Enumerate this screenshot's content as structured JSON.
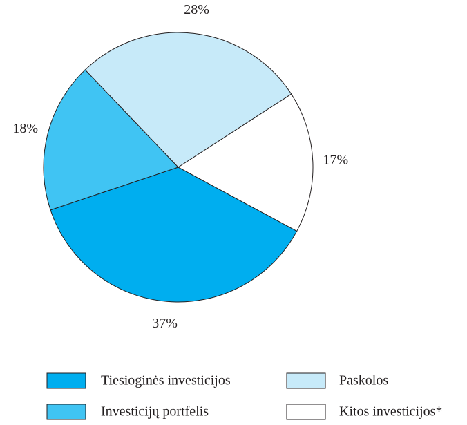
{
  "chart_data": {
    "type": "pie",
    "categories": [
      "Tiesioginės investicijos",
      "Investicijų portfelis",
      "Paskolos",
      "Kitos investicijos*"
    ],
    "values": [
      37,
      18,
      28,
      17
    ],
    "value_labels": [
      "37%",
      "18%",
      "28%",
      "17%"
    ],
    "colors": [
      "#00aeef",
      "#40c4f3",
      "#c7eaf9",
      "#ffffff"
    ],
    "legend": "bottom"
  }
}
